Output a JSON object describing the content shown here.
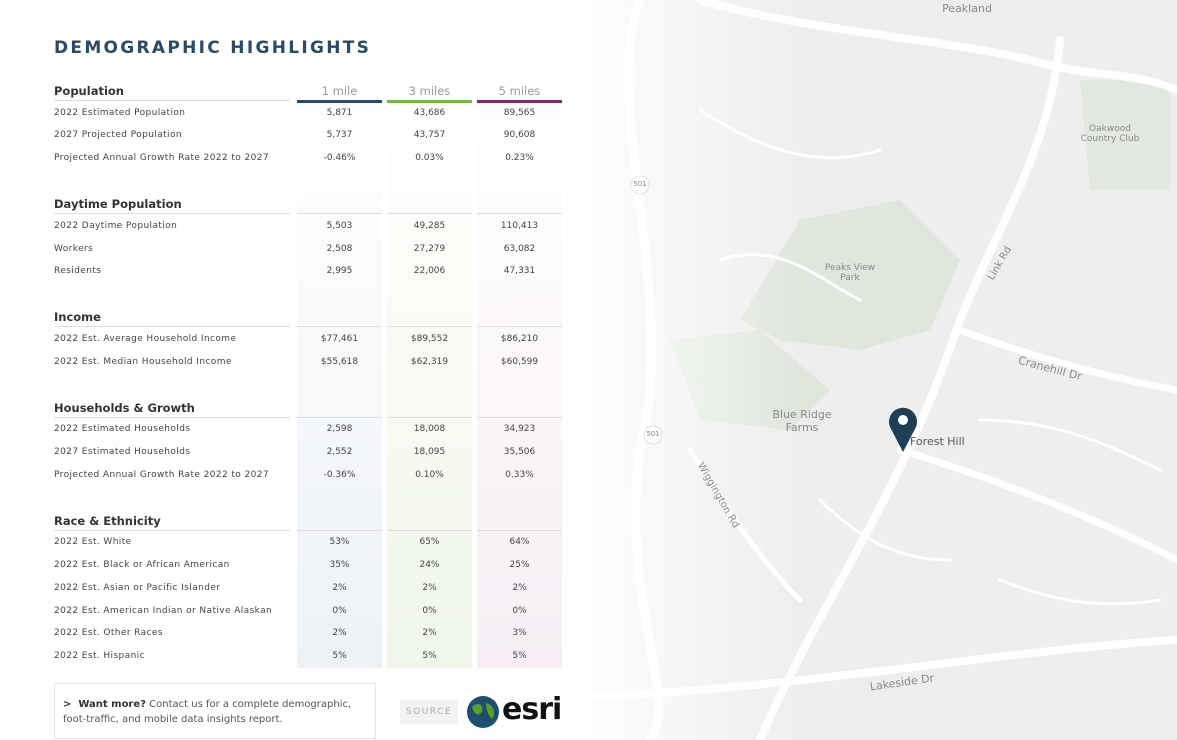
{
  "header": {
    "title": "DEMOGRAPHIC HIGHLIGHTS"
  },
  "table": {
    "columns": [
      "1 mile",
      "3 miles",
      "5 miles"
    ],
    "sections": [
      {
        "heading": "Population",
        "rows": [
          {
            "label": "2022 Estimated Population",
            "values": [
              "5,871",
              "43,686",
              "89,565"
            ]
          },
          {
            "label": "2027 Projected Population",
            "values": [
              "5,737",
              "43,757",
              "90,608"
            ]
          },
          {
            "label": "Projected Annual Growth Rate 2022 to 2027",
            "values": [
              "-0.46%",
              "0.03%",
              "0.23%"
            ]
          }
        ]
      },
      {
        "heading": "Daytime Population",
        "rows": [
          {
            "label": "2022 Daytime Population",
            "values": [
              "5,503",
              "49,285",
              "110,413"
            ]
          },
          {
            "label": "Workers",
            "values": [
              "2,508",
              "27,279",
              "63,082"
            ]
          },
          {
            "label": "Residents",
            "values": [
              "2,995",
              "22,006",
              "47,331"
            ]
          }
        ]
      },
      {
        "heading": "Income",
        "rows": [
          {
            "label": "2022 Est. Average Household Income",
            "values": [
              "$77,461",
              "$89,552",
              "$86,210"
            ]
          },
          {
            "label": "2022 Est. Median Household Income",
            "values": [
              "$55,618",
              "$62,319",
              "$60,599"
            ]
          }
        ]
      },
      {
        "heading": "Households & Growth",
        "rows": [
          {
            "label": "2022 Estimated Households",
            "values": [
              "2,598",
              "18,008",
              "34,923"
            ]
          },
          {
            "label": "2027 Estimated Households",
            "values": [
              "2,552",
              "18,095",
              "35,506"
            ]
          },
          {
            "label": "Projected Annual Growth Rate 2022 to 2027",
            "values": [
              "-0.36%",
              "0.10%",
              "0.33%"
            ]
          }
        ]
      },
      {
        "heading": "Race & Ethnicity",
        "rows": [
          {
            "label": "2022 Est. White",
            "values": [
              "53%",
              "65%",
              "64%"
            ]
          },
          {
            "label": "2022 Est. Black or African American",
            "values": [
              "35%",
              "24%",
              "25%"
            ]
          },
          {
            "label": "2022 Est. Asian or Pacific Islander",
            "values": [
              "2%",
              "2%",
              "2%"
            ]
          },
          {
            "label": "2022 Est. American Indian or Native Alaskan",
            "values": [
              "0%",
              "0%",
              "0%"
            ]
          },
          {
            "label": "2022 Est. Other Races",
            "values": [
              "2%",
              "2%",
              "3%"
            ]
          },
          {
            "label": "2022 Est. Hispanic",
            "values": [
              "5%",
              "5%",
              "5%"
            ]
          }
        ]
      }
    ]
  },
  "footer": {
    "cta": "Want more?",
    "text": "Contact us for a complete demographic, foot-traffic, and mobile data insights report.",
    "source": "SOURCE",
    "logo": "esri"
  },
  "map": {
    "labels": [
      "Peakland",
      "Oakwood Country Club",
      "Peaks View Park",
      "Link Rd",
      "Cranehill Dr",
      "Blue Ridge Farms",
      "Forest Hill",
      "Wiggington Rd",
      "Lakeside Dr",
      "501",
      "501"
    ]
  }
}
